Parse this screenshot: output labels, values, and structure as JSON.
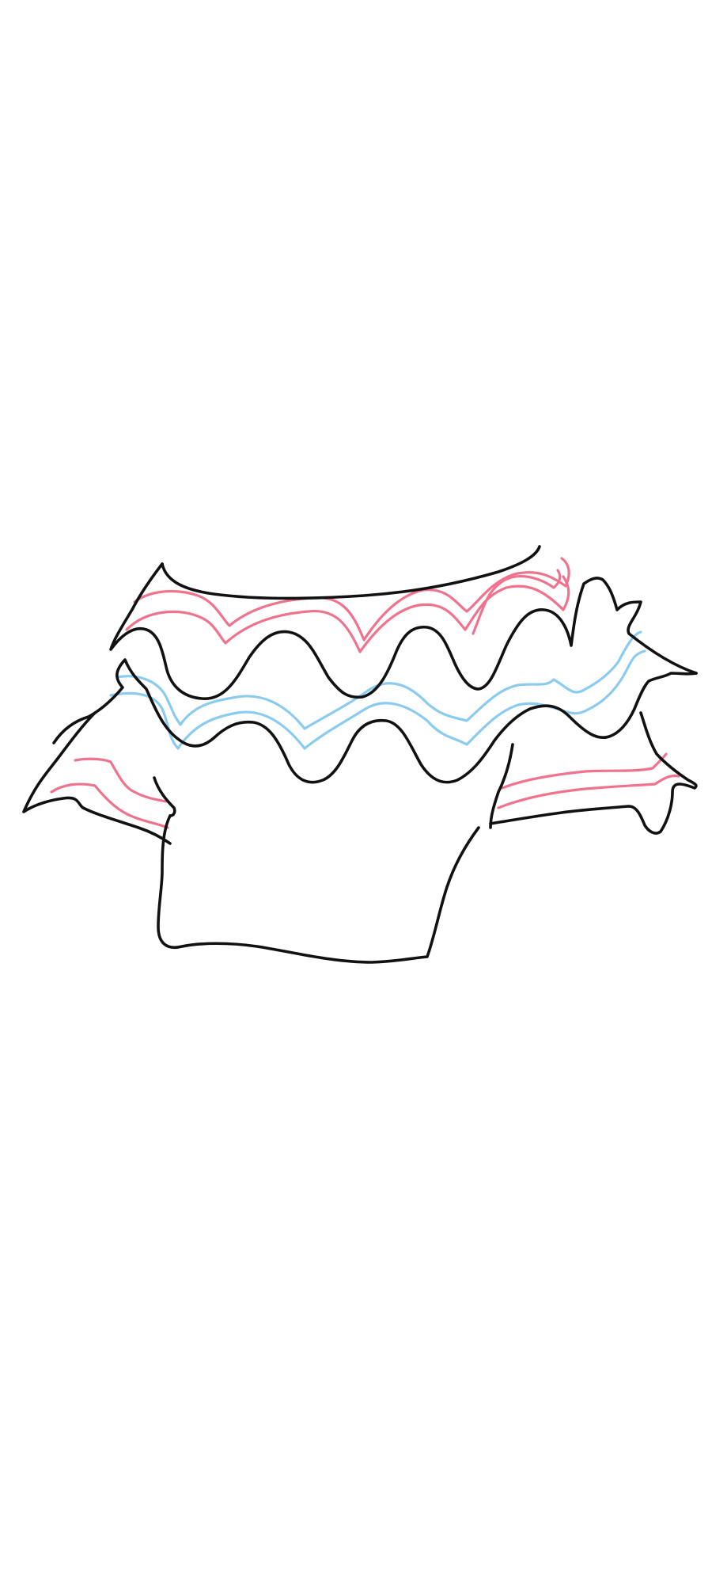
{
  "colors": {
    "background": "#ffffff",
    "outline": "#111111",
    "stripe_pink": "#f0738d",
    "stripe_blue": "#8ccbf0"
  }
}
